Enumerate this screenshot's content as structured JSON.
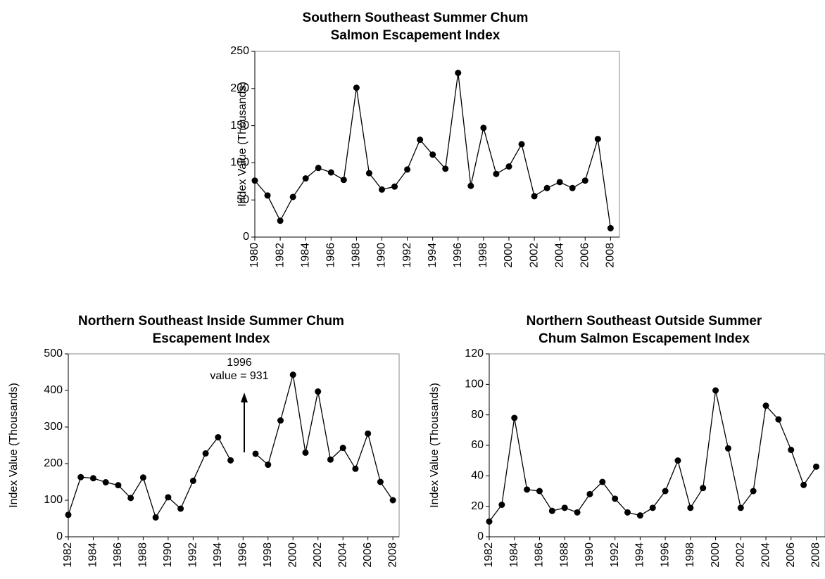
{
  "chart_data": [
    {
      "type": "line",
      "title": [
        "Southern Southeast Summer Chum",
        "Salmon Escapement Index"
      ],
      "y_label": "Index Value (Thousands)",
      "color": "#000000",
      "x": [
        1980,
        1981,
        1982,
        1983,
        1984,
        1985,
        1986,
        1987,
        1988,
        1989,
        1990,
        1991,
        1992,
        1993,
        1994,
        1995,
        1996,
        1997,
        1998,
        1999,
        2000,
        2001,
        2002,
        2003,
        2004,
        2005,
        2006,
        2007,
        2008
      ],
      "values": [
        76,
        56,
        22,
        54,
        79,
        93,
        87,
        77,
        201,
        86,
        64,
        68,
        91,
        131,
        111,
        92,
        221,
        69,
        147,
        85,
        95,
        125,
        55,
        66,
        74,
        66,
        76,
        132,
        12
      ],
      "xlim": [
        1980,
        2008.7
      ],
      "xticks": [
        1980,
        1982,
        1984,
        1986,
        1988,
        1990,
        1992,
        1994,
        1996,
        1998,
        2000,
        2002,
        2004,
        2006,
        2008
      ],
      "ylim": [
        0,
        250
      ],
      "yticks": [
        0,
        50,
        100,
        150,
        200,
        250
      ]
    },
    {
      "type": "line",
      "title": [
        "Northern Southeast Inside Summer Chum",
        "Escapement Index"
      ],
      "y_label": "Index Value (Thousands)",
      "color": "#000000",
      "x": [
        1982,
        1983,
        1984,
        1985,
        1986,
        1987,
        1988,
        1989,
        1990,
        1991,
        1992,
        1993,
        1994,
        1995,
        1996,
        1997,
        1998,
        1999,
        2000,
        2001,
        2002,
        2003,
        2004,
        2005,
        2006,
        2007,
        2008
      ],
      "values": [
        60,
        163,
        160,
        149,
        141,
        106,
        162,
        53,
        108,
        77,
        153,
        228,
        272,
        209,
        null,
        227,
        197,
        318,
        443,
        230,
        397,
        211,
        243,
        186,
        282,
        150,
        100
      ],
      "annotation": [
        "1996",
        "value = 931"
      ],
      "xlim": [
        1982,
        2008.5
      ],
      "xticks": [
        1982,
        1984,
        1986,
        1988,
        1990,
        1992,
        1994,
        1996,
        1998,
        2000,
        2002,
        2004,
        2006,
        2008
      ],
      "ylim": [
        0,
        500
      ],
      "yticks": [
        0,
        100,
        200,
        300,
        400,
        500
      ]
    },
    {
      "type": "line",
      "title": [
        "Northern Southeast Outside Summer",
        "Chum Salmon Escapement Index"
      ],
      "y_label": "Index Value (Thousands)",
      "color": "#000000",
      "x": [
        1982,
        1983,
        1984,
        1985,
        1986,
        1987,
        1988,
        1989,
        1990,
        1991,
        1992,
        1993,
        1994,
        1995,
        1996,
        1997,
        1998,
        1999,
        2000,
        2001,
        2002,
        2003,
        2004,
        2005,
        2006,
        2007,
        2008
      ],
      "values": [
        10,
        21,
        78,
        31,
        30,
        17,
        19,
        16,
        28,
        36,
        25,
        16,
        14,
        19,
        30,
        50,
        19,
        32,
        96,
        58,
        19,
        30,
        86,
        77,
        57,
        34,
        46
      ],
      "xlim": [
        1982,
        2008.7
      ],
      "xticks": [
        1982,
        1984,
        1986,
        1988,
        1990,
        1992,
        1994,
        1996,
        1998,
        2000,
        2002,
        2004,
        2006,
        2008
      ],
      "ylim": [
        0,
        120
      ],
      "yticks": [
        0,
        20,
        40,
        60,
        80,
        100,
        120
      ]
    }
  ]
}
